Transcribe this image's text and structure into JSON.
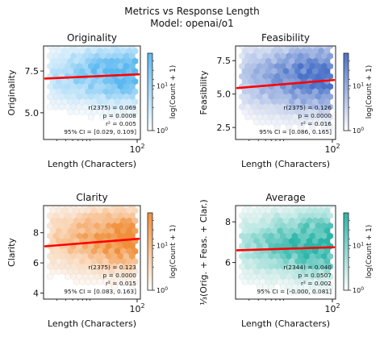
{
  "figure": {
    "title": "Metrics vs Response Length",
    "subtitle": "Model: openai/o1"
  },
  "chart_data": [
    {
      "type": "hexbin",
      "title": "Originality",
      "xlabel": "Length (Characters)",
      "ylabel": "Originality",
      "x_scale": "log",
      "x_tick_labels": [
        {
          "value": 100,
          "label": "10^2"
        }
      ],
      "y_ticks": [
        5.0,
        7.5
      ],
      "y_tick_labels": [
        "5.0",
        "7.5"
      ],
      "ylim": [
        3.4,
        9.0
      ],
      "colorbar": {
        "label": "log(Count + 1)",
        "ticks": [
          "10^0",
          "10^1"
        ],
        "color": "#5bb8f0"
      },
      "regression_line": {
        "start": 7.05,
        "end": 7.3,
        "color": "#ff0000"
      },
      "density_center": 7.3,
      "density_spread": 1.0,
      "stats": [
        "r(2375) = 0.069",
        "p = 0.0008",
        "r² = 0.005",
        "95% CI = [0.029, 0.109]"
      ]
    },
    {
      "type": "hexbin",
      "title": "Feasibility",
      "xlabel": "Length (Characters)",
      "ylabel": "Feasibility",
      "x_scale": "log",
      "x_tick_labels": [
        {
          "value": 100,
          "label": "10^2"
        }
      ],
      "y_ticks": [
        2.5,
        5.0,
        7.5
      ],
      "y_tick_labels": [
        "2.5",
        "5.0",
        "7.5"
      ],
      "ylim": [
        1.6,
        8.6
      ],
      "colorbar": {
        "label": "log(Count + 1)",
        "ticks": [
          "10^0",
          "10^1"
        ],
        "color": "#4a72c8"
      },
      "regression_line": {
        "start": 5.45,
        "end": 6.05,
        "color": "#ff0000"
      },
      "density_center": 6.3,
      "density_spread": 1.5,
      "stats": [
        "r(2375) = 0.126",
        "p = 0.0000",
        "r² = 0.016",
        "95% CI = [0.086, 0.165]"
      ]
    },
    {
      "type": "hexbin",
      "title": "Clarity",
      "xlabel": "Length (Characters)",
      "ylabel": "Clarity",
      "x_scale": "log",
      "x_tick_labels": [
        {
          "value": 100,
          "label": "10^2"
        }
      ],
      "y_ticks": [
        4,
        6,
        8
      ],
      "y_tick_labels": [
        "4",
        "6",
        "8"
      ],
      "ylim": [
        3.6,
        9.8
      ],
      "colorbar": {
        "label": "log(Count + 1)",
        "ticks": [
          "10^0",
          "10^1"
        ],
        "color": "#f08f3a"
      },
      "regression_line": {
        "start": 7.1,
        "end": 7.6,
        "color": "#ff0000"
      },
      "density_center": 7.6,
      "density_spread": 1.2,
      "stats": [
        "r(2375) = 0.123",
        "p = 0.0000",
        "r² = 0.015",
        "95% CI = [0.083, 0.163]"
      ]
    },
    {
      "type": "hexbin",
      "title": "Average",
      "xlabel": "Length (Characters)",
      "ylabel": "⅓(Orig. + Feas. + Clar.)",
      "x_scale": "log",
      "x_tick_labels": [
        {
          "value": 100,
          "label": "10^2"
        }
      ],
      "y_ticks": [
        6,
        8
      ],
      "y_tick_labels": [
        "6",
        "8"
      ],
      "ylim": [
        4.2,
        8.8
      ],
      "colorbar": {
        "label": "log(Count + 1)",
        "ticks": [
          "10^0",
          "10^1"
        ],
        "color": "#2bb5a8"
      },
      "regression_line": {
        "start": 6.6,
        "end": 6.75,
        "color": "#ff0000"
      },
      "density_center": 6.9,
      "density_spread": 0.9,
      "stats": [
        "r(2344) = 0.040",
        "p = 0.0507",
        "r² = 0.002",
        "95% CI = [-0.000, 0.081]"
      ]
    }
  ]
}
